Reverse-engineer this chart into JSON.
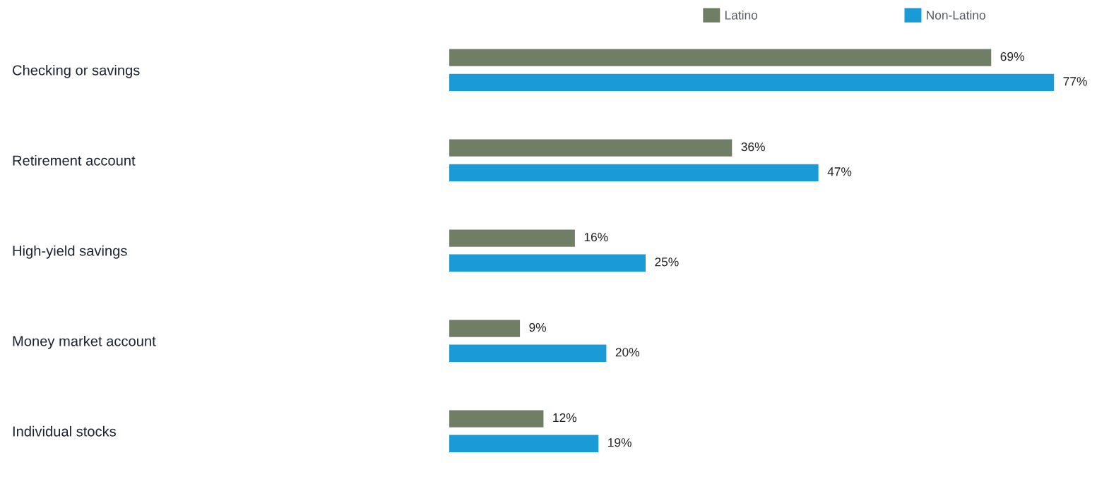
{
  "chart_data": {
    "type": "bar",
    "orientation": "horizontal",
    "tick_labels": "y",
    "legend": "top",
    "grid": false,
    "categories": [
      "Checking or savings",
      "Retirement account",
      "High-yield savings",
      "Money market account",
      "Individual stocks"
    ],
    "series": [
      {
        "name": "Latino",
        "color": "#6e7f66",
        "values": [
          69,
          36,
          16,
          9,
          12
        ],
        "value_labels": [
          "69%",
          "36%",
          "16%",
          "9%",
          "12%"
        ]
      },
      {
        "name": "Non-Latino",
        "color": "#1a9ad6",
        "values": [
          77,
          47,
          25,
          20,
          19
        ],
        "value_labels": [
          "77%",
          "47%",
          "25%",
          "20%",
          "19%"
        ]
      }
    ]
  }
}
